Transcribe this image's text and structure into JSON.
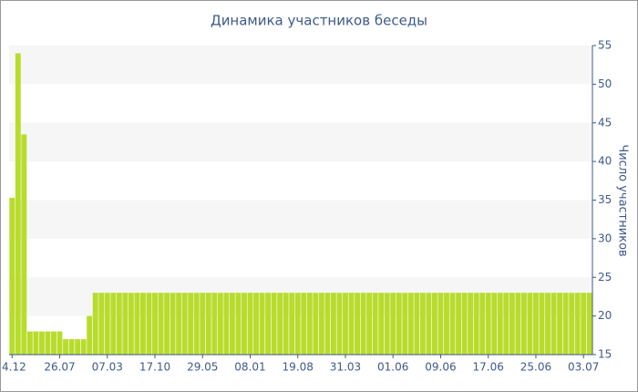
{
  "chart_data": {
    "type": "bar",
    "title": "Динамика участников беседы",
    "y_label": "Число участников",
    "categories": [
      "4.12",
      null,
      null,
      null,
      null,
      null,
      null,
      null,
      "26.07",
      null,
      null,
      null,
      null,
      null,
      null,
      null,
      "07.03",
      null,
      null,
      null,
      null,
      null,
      null,
      null,
      "17.10",
      null,
      null,
      null,
      null,
      null,
      null,
      null,
      "29.05",
      null,
      null,
      null,
      null,
      null,
      null,
      null,
      "08.01",
      null,
      null,
      null,
      null,
      null,
      null,
      null,
      "19.08",
      null,
      null,
      null,
      null,
      null,
      null,
      null,
      "31.03",
      null,
      null,
      null,
      null,
      null,
      null,
      null,
      "01.06",
      null,
      null,
      null,
      null,
      null,
      null,
      null,
      "09.06",
      null,
      null,
      null,
      null,
      null,
      null,
      null,
      "17.06",
      null,
      null,
      null,
      null,
      null,
      null,
      null,
      "25.06",
      null,
      null,
      null,
      null,
      null,
      null,
      null,
      "03.07",
      null
    ],
    "values": [
      35.3,
      54,
      43.5,
      18,
      18,
      18,
      18,
      18,
      18,
      17,
      17,
      17,
      17,
      20,
      23,
      23,
      23,
      23,
      23,
      23,
      23,
      23,
      23,
      23,
      23,
      23,
      23,
      23,
      23,
      23,
      23,
      23,
      23,
      23,
      23,
      23,
      23,
      23,
      23,
      23,
      23,
      23,
      23,
      23,
      23,
      23,
      23,
      23,
      23,
      23,
      23,
      23,
      23,
      23,
      23,
      23,
      23,
      23,
      23,
      23,
      23,
      23,
      23,
      23,
      23,
      23,
      23,
      23,
      23,
      23,
      23,
      23,
      23,
      23,
      23,
      23,
      23,
      23,
      23,
      23,
      23,
      23,
      23,
      23,
      23,
      23,
      23,
      23,
      23,
      23,
      23,
      23,
      23,
      23,
      23,
      23,
      23,
      23
    ],
    "color": "#b8dc2c",
    "ylim": [
      15,
      55
    ],
    "yticks": [
      15,
      20,
      25,
      30,
      35,
      40,
      45,
      50,
      55
    ],
    "y_axis_side": "right",
    "bands": true
  }
}
